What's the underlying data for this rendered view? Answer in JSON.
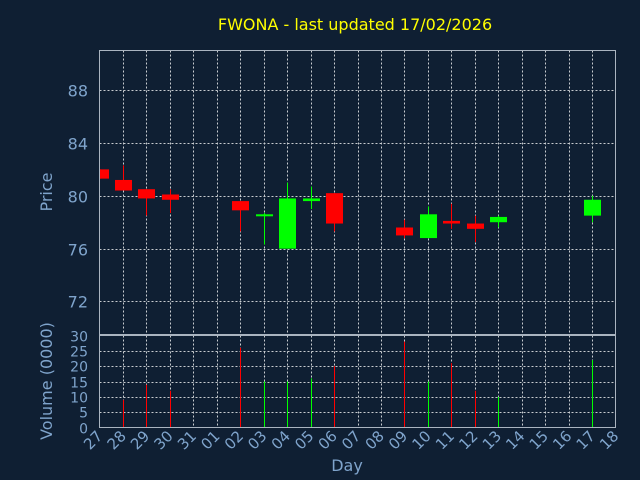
{
  "chart_data": {
    "type": "candlestick",
    "title": "FWONA - last updated 17/02/2026",
    "xlabel": "Day",
    "ylabel_price": "Price",
    "ylabel_volume": "Volume (0000)",
    "price_ylim": [
      69.5,
      91
    ],
    "price_ticks": [
      72,
      76,
      80,
      84,
      88
    ],
    "volume_ylim": [
      0,
      30
    ],
    "volume_ticks": [
      0,
      5,
      10,
      15,
      20,
      25,
      30
    ],
    "x_labels": [
      "27",
      "28",
      "29",
      "30",
      "31",
      "01",
      "02",
      "03",
      "04",
      "05",
      "06",
      "07",
      "08",
      "09",
      "10",
      "11",
      "12",
      "13",
      "14",
      "15",
      "16",
      "17",
      "18"
    ],
    "grid": true,
    "colors": {
      "up": "#00ff00",
      "down": "#ff0000",
      "title": "#ffff00",
      "axis_text": "#7fa4cc",
      "background": "#0f1f33"
    },
    "candles": [
      {
        "x": 0,
        "open": 82.0,
        "high": 82.0,
        "low": 81.3,
        "close": 81.3,
        "volume": 0
      },
      {
        "x": 1,
        "open": 81.2,
        "high": 82.3,
        "low": 80.4,
        "close": 80.4,
        "volume": 9
      },
      {
        "x": 2,
        "open": 80.5,
        "high": 80.5,
        "low": 78.5,
        "close": 79.8,
        "volume": 14
      },
      {
        "x": 3,
        "open": 80.1,
        "high": 80.5,
        "low": 78.7,
        "close": 79.7,
        "volume": 12
      },
      {
        "x": 6,
        "open": 79.6,
        "high": 79.6,
        "low": 77.3,
        "close": 78.9,
        "volume": 26
      },
      {
        "x": 7,
        "open": 78.5,
        "high": 78.7,
        "low": 76.3,
        "close": 78.6,
        "volume": 15
      },
      {
        "x": 8,
        "open": 76.0,
        "high": 81.0,
        "low": 76.0,
        "close": 79.8,
        "volume": 15
      },
      {
        "x": 9,
        "open": 79.6,
        "high": 80.7,
        "low": 79.0,
        "close": 79.8,
        "volume": 16
      },
      {
        "x": 10,
        "open": 80.2,
        "high": 80.2,
        "low": 77.3,
        "close": 77.9,
        "volume": 20
      },
      {
        "x": 13,
        "open": 77.6,
        "high": 78.2,
        "low": 76.8,
        "close": 77.0,
        "volume": 28
      },
      {
        "x": 14,
        "open": 76.8,
        "high": 79.2,
        "low": 76.8,
        "close": 78.6,
        "volume": 15
      },
      {
        "x": 15,
        "open": 78.1,
        "high": 79.4,
        "low": 77.5,
        "close": 77.9,
        "volume": 21
      },
      {
        "x": 16,
        "open": 77.9,
        "high": 78.5,
        "low": 76.5,
        "close": 77.5,
        "volume": 12
      },
      {
        "x": 17,
        "open": 78.0,
        "high": 78.5,
        "low": 77.6,
        "close": 78.4,
        "volume": 10
      },
      {
        "x": 21,
        "open": 78.5,
        "high": 80.0,
        "low": 78.0,
        "close": 79.7,
        "volume": 22
      }
    ]
  }
}
